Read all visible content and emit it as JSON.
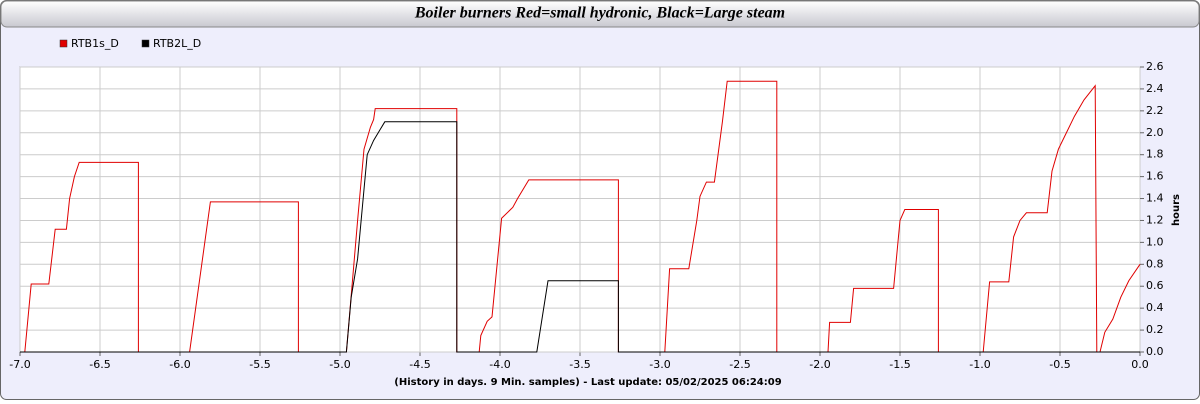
{
  "chart_data": {
    "type": "line",
    "title": "Boiler burners  Red=small hydronic, Black=Large steam",
    "x_label": "(History in days. 9 Min. samples) - Last update: 05/02/2025 06:24:09",
    "y_label": "hours",
    "xlim": [
      -7,
      0
    ],
    "ylim": [
      0,
      2.6
    ],
    "xticks": [
      {
        "value": -7,
        "label": "-7.0"
      },
      -6.5,
      {
        "value": -6,
        "label": "-6.0"
      },
      -5.5,
      {
        "value": -5,
        "label": "-5.0"
      },
      -4.5,
      {
        "value": -4,
        "label": "-4.0"
      },
      -3.5,
      {
        "value": -3,
        "label": "-3.0"
      },
      -2.5,
      {
        "value": -2,
        "label": "-2.0"
      },
      -1.5,
      {
        "value": -1,
        "label": "-1.0"
      },
      -0.5,
      {
        "value": 0,
        "label": "0.0"
      }
    ],
    "yticks": [
      {
        "value": 0,
        "label": "0.0"
      },
      0.2,
      0.4,
      0.6,
      0.8,
      {
        "value": 1,
        "label": "1.0"
      },
      1.2,
      1.4,
      1.6,
      1.8,
      {
        "value": 2,
        "label": "2.0"
      },
      2.2,
      2.4,
      2.6
    ],
    "grid": true,
    "legend": "top-left",
    "series": [
      {
        "name": "RTB1s_D",
        "color": "#e00000",
        "x": [
          -7,
          -6.97,
          -6.93,
          -6.82,
          -6.78,
          -6.71,
          -6.69,
          -6.66,
          -6.63,
          -6.26,
          -6.26,
          -5.94,
          -5.81,
          -5.26,
          -5.26,
          -4.96,
          -4.89,
          -4.85,
          -4.81,
          -4.79,
          -4.78,
          -4.27,
          -4.27,
          -4.13,
          -4.12,
          -4.08,
          -4.05,
          -3.99,
          -3.92,
          -3.89,
          -3.82,
          -3.26,
          -3.26,
          -2.97,
          -2.94,
          -2.82,
          -2.77,
          -2.75,
          -2.71,
          -2.66,
          -2.61,
          -2.58,
          -2.27,
          -2.27,
          -1.95,
          -1.94,
          -1.81,
          -1.79,
          -1.54,
          -1.5,
          -1.47,
          -1.26,
          -1.26,
          -0.98,
          -0.94,
          -0.82,
          -0.79,
          -0.75,
          -0.71,
          -0.58,
          -0.55,
          -0.51,
          -0.46,
          -0.41,
          -0.35,
          -0.28,
          -0.27,
          -0.25,
          -0.22,
          -0.17,
          -0.12,
          -0.07,
          0
        ],
        "values": [
          0,
          0,
          0.62,
          0.62,
          1.12,
          1.12,
          1.4,
          1.6,
          1.73,
          1.73,
          0,
          0,
          1.37,
          1.37,
          0,
          0,
          1.2,
          1.85,
          2.05,
          2.12,
          2.22,
          2.22,
          0,
          0,
          0.15,
          0.28,
          0.32,
          1.22,
          1.32,
          1.4,
          1.57,
          1.57,
          0,
          0,
          0.76,
          0.76,
          1.2,
          1.42,
          1.55,
          1.55,
          2.1,
          2.47,
          2.47,
          0,
          0,
          0.27,
          0.27,
          0.58,
          0.58,
          1.2,
          1.3,
          1.3,
          0,
          0,
          0.64,
          0.64,
          1.05,
          1.2,
          1.27,
          1.27,
          1.65,
          1.85,
          2.0,
          2.15,
          2.3,
          2.43,
          0,
          0,
          0.18,
          0.3,
          0.5,
          0.65,
          0.8
        ]
      },
      {
        "name": "RTB2L_D",
        "color": "#000000",
        "x": [
          -7,
          -4.96,
          -4.93,
          -4.89,
          -4.83,
          -4.79,
          -4.72,
          -4.27,
          -4.27,
          -3.77,
          -3.7,
          -3.26,
          -3.26,
          0
        ],
        "values": [
          0,
          0,
          0.5,
          0.85,
          1.8,
          1.93,
          2.1,
          2.1,
          0,
          0,
          0.65,
          0.65,
          0,
          0
        ]
      }
    ]
  }
}
